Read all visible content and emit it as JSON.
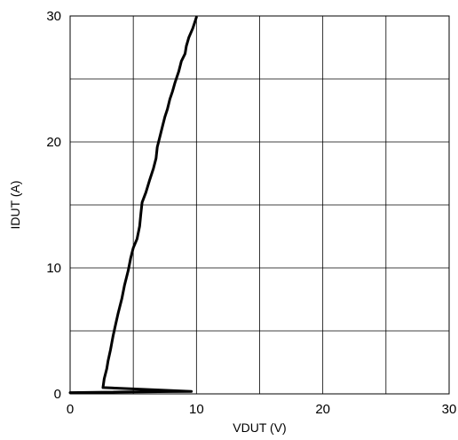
{
  "chart_data": {
    "type": "line",
    "xlabel": "VDUT (V)",
    "ylabel": "IDUT (A)",
    "xlim": [
      0,
      30
    ],
    "ylim": [
      0,
      30
    ],
    "x_ticks": [
      0,
      10,
      20,
      30
    ],
    "y_ticks": [
      0,
      10,
      20,
      30
    ],
    "x_grid_step": 5,
    "y_grid_step": 5,
    "grid": true,
    "line_color": "#000000",
    "series": [
      {
        "points": [
          [
            0,
            0.1
          ],
          [
            4,
            0.15
          ],
          [
            8,
            0.18
          ],
          [
            9.6,
            0.2
          ],
          [
            2.6,
            0.5
          ],
          [
            2.7,
            1.2
          ],
          [
            2.9,
            2.0
          ],
          [
            3.0,
            2.6
          ],
          [
            3.2,
            3.5
          ],
          [
            3.4,
            4.6
          ],
          [
            3.6,
            5.5
          ],
          [
            3.8,
            6.4
          ],
          [
            4.1,
            7.6
          ],
          [
            4.3,
            8.6
          ],
          [
            4.6,
            9.8
          ],
          [
            4.8,
            10.8
          ],
          [
            5.0,
            11.6
          ],
          [
            5.3,
            12.3
          ],
          [
            5.5,
            13.3
          ],
          [
            5.6,
            14.3
          ],
          [
            5.7,
            15.2
          ],
          [
            6.0,
            16.0
          ],
          [
            6.3,
            17.0
          ],
          [
            6.6,
            17.9
          ],
          [
            6.8,
            18.7
          ],
          [
            6.9,
            19.6
          ],
          [
            7.1,
            20.4
          ],
          [
            7.3,
            21.2
          ],
          [
            7.5,
            22.0
          ],
          [
            7.7,
            22.6
          ],
          [
            7.9,
            23.4
          ],
          [
            8.1,
            24.0
          ],
          [
            8.3,
            24.7
          ],
          [
            8.6,
            25.6
          ],
          [
            8.8,
            26.4
          ],
          [
            9.1,
            27.0
          ],
          [
            9.2,
            27.6
          ],
          [
            9.4,
            28.3
          ],
          [
            9.7,
            29.0
          ],
          [
            9.9,
            29.6
          ],
          [
            10.0,
            29.9
          ]
        ]
      }
    ]
  }
}
